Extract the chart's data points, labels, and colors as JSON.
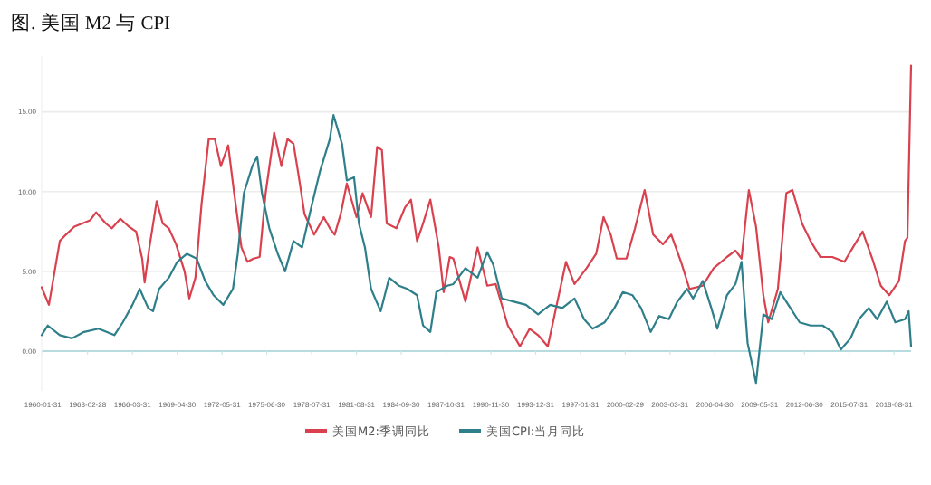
{
  "chart_data": {
    "type": "line",
    "title": "图. 美国 M2 与 CPI",
    "xlim": [
      "1960-01",
      "2019-11"
    ],
    "xticks": [
      "1960-01-31",
      "1963-02-28",
      "1966-03-31",
      "1969-04-30",
      "1972-05-31",
      "1975-06-30",
      "1978-07-31",
      "1981-08-31",
      "1984-09-30",
      "1987-10-31",
      "1990-11-30",
      "1993-12-31",
      "1997-01-31",
      "2000-02-29",
      "2003-03-31",
      "2006-04-30",
      "2009-05-31",
      "2012-06-30",
      "2015-07-31",
      "2018-08-31"
    ],
    "ylim": [
      -2.5,
      18.5
    ],
    "yticks": [
      {
        "value": 0,
        "label": "0.00"
      },
      {
        "value": 5,
        "label": "5.00"
      },
      {
        "value": 10,
        "label": "10.00"
      },
      {
        "value": 15,
        "label": "15.00"
      }
    ],
    "ref_lines": [
      {
        "axis": "y",
        "value": 0,
        "color": "#9fd0d4"
      }
    ],
    "grid": "y",
    "legend": "bottom",
    "line_style": "solid",
    "marker": "none",
    "series": [
      {
        "name": "美国M2:季调同比",
        "color": "#d9414e",
        "x": [
          "1960-01",
          "1960-07",
          "1961-04",
          "1961-09",
          "1962-04",
          "1963-05",
          "1963-10",
          "1964-06",
          "1964-11",
          "1965-06",
          "1966-01",
          "1966-07",
          "1966-12",
          "1967-02",
          "1967-06",
          "1967-12",
          "1968-05",
          "1968-10",
          "1969-04",
          "1969-11",
          "1970-03",
          "1970-08",
          "1971-01",
          "1971-07",
          "1971-12",
          "1972-05",
          "1972-11",
          "1973-04",
          "1973-10",
          "1974-03",
          "1974-08",
          "1975-01",
          "1975-06",
          "1976-01",
          "1976-07",
          "1976-12",
          "1977-05",
          "1977-09",
          "1978-02",
          "1978-10",
          "1979-06",
          "1979-11",
          "1980-03",
          "1980-08",
          "1981-01",
          "1981-09",
          "1982-02",
          "1982-09",
          "1983-02",
          "1983-06",
          "1983-10",
          "1984-06",
          "1985-01",
          "1985-06",
          "1985-11",
          "1986-04",
          "1986-10",
          "1987-05",
          "1987-09",
          "1988-02",
          "1988-05",
          "1989-03",
          "1990-01",
          "1990-09",
          "1991-04",
          "1992-02",
          "1992-12",
          "1993-08",
          "1994-03",
          "1994-11",
          "1995-07",
          "1996-02",
          "1996-09",
          "1997-07",
          "1998-03",
          "1998-09",
          "1999-03",
          "1999-08",
          "2000-04",
          "2000-11",
          "2001-07",
          "2002-02",
          "2002-10",
          "2003-05",
          "2004-01",
          "2004-08",
          "2005-07",
          "2006-04",
          "2007-03",
          "2007-10",
          "2008-03",
          "2008-09",
          "2009-03",
          "2009-09",
          "2010-01",
          "2010-09",
          "2011-04",
          "2011-09",
          "2012-05",
          "2012-12",
          "2013-08",
          "2014-06",
          "2015-04",
          "2015-11",
          "2016-07",
          "2017-03",
          "2017-10",
          "2018-05",
          "2019-01",
          "2019-06",
          "2019-08",
          "2019-11"
        ],
        "values": [
          4.0,
          2.9,
          6.9,
          7.3,
          7.8,
          8.2,
          8.7,
          8.0,
          7.7,
          8.3,
          7.8,
          7.5,
          5.8,
          4.3,
          6.5,
          9.4,
          8.0,
          7.7,
          6.7,
          5.0,
          3.3,
          4.6,
          9.2,
          13.3,
          13.3,
          11.6,
          12.9,
          9.9,
          6.5,
          5.6,
          5.8,
          5.9,
          9.9,
          13.7,
          11.6,
          13.3,
          13.0,
          11.1,
          8.6,
          7.3,
          8.4,
          7.7,
          7.3,
          8.6,
          10.5,
          8.4,
          9.9,
          8.4,
          12.8,
          12.6,
          8.0,
          7.7,
          9.0,
          9.5,
          6.9,
          8.0,
          9.5,
          6.5,
          3.7,
          5.9,
          5.8,
          3.1,
          6.5,
          4.1,
          4.2,
          1.6,
          0.3,
          1.4,
          1.0,
          0.3,
          3.1,
          5.6,
          4.2,
          5.2,
          6.1,
          8.4,
          7.3,
          5.8,
          5.8,
          7.7,
          10.1,
          7.3,
          6.7,
          7.3,
          5.6,
          3.9,
          4.1,
          5.2,
          5.9,
          6.3,
          5.8,
          10.1,
          7.8,
          3.5,
          1.8,
          3.9,
          9.9,
          10.1,
          8.0,
          6.9,
          5.9,
          5.9,
          5.6,
          6.5,
          7.5,
          5.8,
          4.1,
          3.5,
          4.4,
          6.9,
          7.1,
          17.9
        ]
      },
      {
        "name": "美国CPI:当月同比",
        "color": "#2e7f8a",
        "x": [
          "1960-01",
          "1960-06",
          "1961-04",
          "1962-02",
          "1962-12",
          "1963-12",
          "1965-01",
          "1965-08",
          "1966-04",
          "1966-10",
          "1967-05",
          "1967-09",
          "1968-02",
          "1968-10",
          "1969-05",
          "1970-01",
          "1970-09",
          "1971-04",
          "1971-11",
          "1972-07",
          "1973-03",
          "1973-07",
          "1973-12",
          "1974-07",
          "1974-11",
          "1975-03",
          "1975-09",
          "1976-04",
          "1976-10",
          "1977-05",
          "1977-12",
          "1978-07",
          "1979-03",
          "1979-11",
          "1980-02",
          "1980-09",
          "1981-01",
          "1981-07",
          "1981-11",
          "1982-04",
          "1982-09",
          "1983-05",
          "1983-12",
          "1984-08",
          "1985-03",
          "1985-11",
          "1986-04",
          "1986-10",
          "1987-03",
          "1987-12",
          "1988-05",
          "1989-03",
          "1990-01",
          "1990-09",
          "1991-02",
          "1991-09",
          "1992-07",
          "1993-05",
          "1994-03",
          "1995-01",
          "1995-11",
          "1996-09",
          "1997-05",
          "1997-12",
          "1998-10",
          "1999-06",
          "2000-01",
          "2000-09",
          "2001-04",
          "2001-12",
          "2002-07",
          "2003-03",
          "2003-10",
          "2004-06",
          "2004-11",
          "2005-07",
          "2006-02",
          "2006-07",
          "2007-03",
          "2007-10",
          "2008-03",
          "2008-08",
          "2009-03",
          "2009-09",
          "2010-04",
          "2010-11",
          "2011-04",
          "2012-03",
          "2012-12",
          "2013-10",
          "2014-06",
          "2015-01",
          "2015-09",
          "2016-04",
          "2016-12",
          "2017-07",
          "2018-03",
          "2018-10",
          "2019-06",
          "2019-09",
          "2019-11"
        ],
        "values": [
          1.0,
          1.6,
          1.0,
          0.8,
          1.2,
          1.4,
          1.0,
          1.8,
          2.9,
          3.9,
          2.7,
          2.5,
          3.9,
          4.6,
          5.6,
          6.1,
          5.8,
          4.4,
          3.5,
          2.9,
          3.9,
          6.1,
          9.9,
          11.6,
          12.2,
          9.9,
          7.7,
          6.1,
          5.0,
          6.9,
          6.5,
          8.8,
          11.3,
          13.3,
          14.8,
          13.0,
          10.7,
          10.9,
          8.0,
          6.5,
          3.9,
          2.5,
          4.6,
          4.1,
          3.9,
          3.5,
          1.6,
          1.2,
          3.7,
          4.1,
          4.2,
          5.2,
          4.6,
          6.2,
          5.4,
          3.3,
          3.1,
          2.9,
          2.3,
          2.9,
          2.7,
          3.3,
          2.0,
          1.4,
          1.8,
          2.7,
          3.7,
          3.5,
          2.7,
          1.2,
          2.2,
          2.0,
          3.1,
          3.9,
          3.3,
          4.4,
          2.7,
          1.4,
          3.5,
          4.2,
          5.6,
          0.5,
          -2.0,
          2.3,
          2.0,
          3.7,
          3.1,
          1.8,
          1.6,
          1.6,
          1.2,
          0.1,
          0.8,
          2.0,
          2.7,
          2.0,
          3.1,
          1.8,
          2.0,
          2.5,
          0.3
        ]
      }
    ]
  }
}
